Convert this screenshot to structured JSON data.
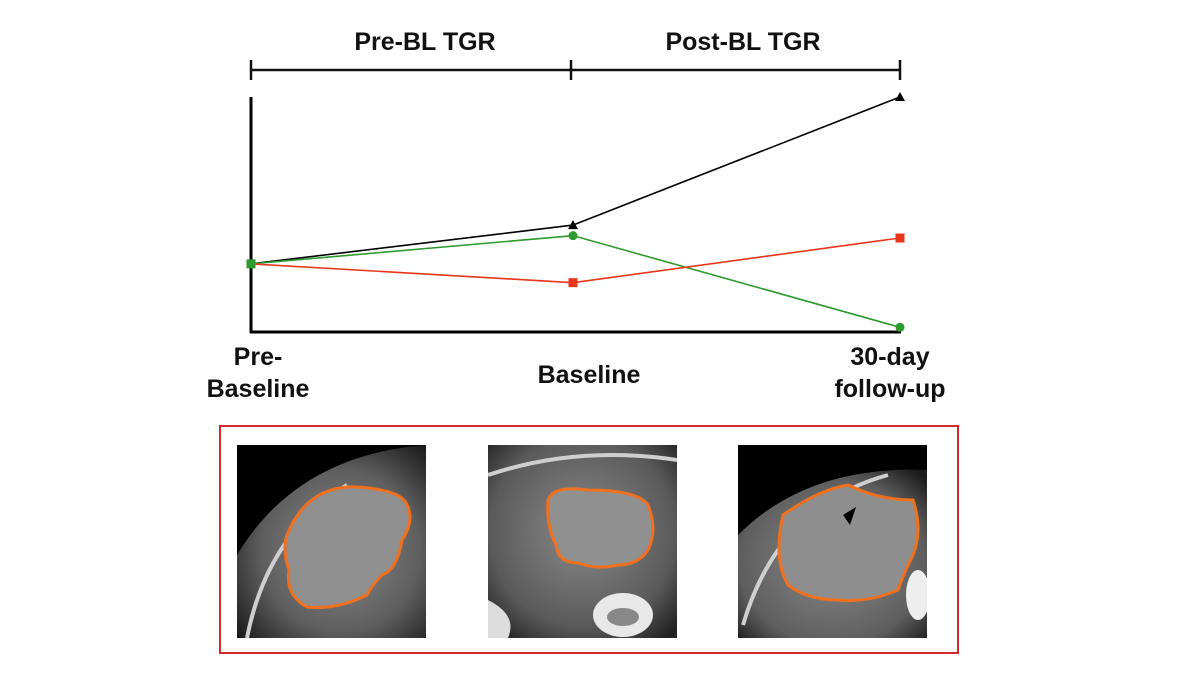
{
  "phases": {
    "pre": "Pre-BL TGR",
    "post": "Post-BL TGR"
  },
  "x_labels": {
    "pre_line1": "Pre-",
    "pre_line2": "Baseline",
    "baseline": "Baseline",
    "follow_line1": "30-day",
    "follow_line2": "follow-up"
  },
  "colors": {
    "black": "#000000",
    "green": "#2e9a2e",
    "red": "#e8361a",
    "contour": "#f07020",
    "panel_border": "#d42a2a"
  },
  "chart_data": {
    "type": "line",
    "categories": [
      "Pre-Baseline",
      "Baseline",
      "30-day follow-up"
    ],
    "ylim": [
      0,
      100
    ],
    "series": [
      {
        "name": "black",
        "marker": "triangle",
        "values": [
          29,
          45.5,
          100
        ]
      },
      {
        "name": "green",
        "marker": "circle",
        "values": [
          29,
          41,
          2
        ]
      },
      {
        "name": "red",
        "marker": "square",
        "values": [
          29,
          21,
          40
        ]
      }
    ]
  }
}
